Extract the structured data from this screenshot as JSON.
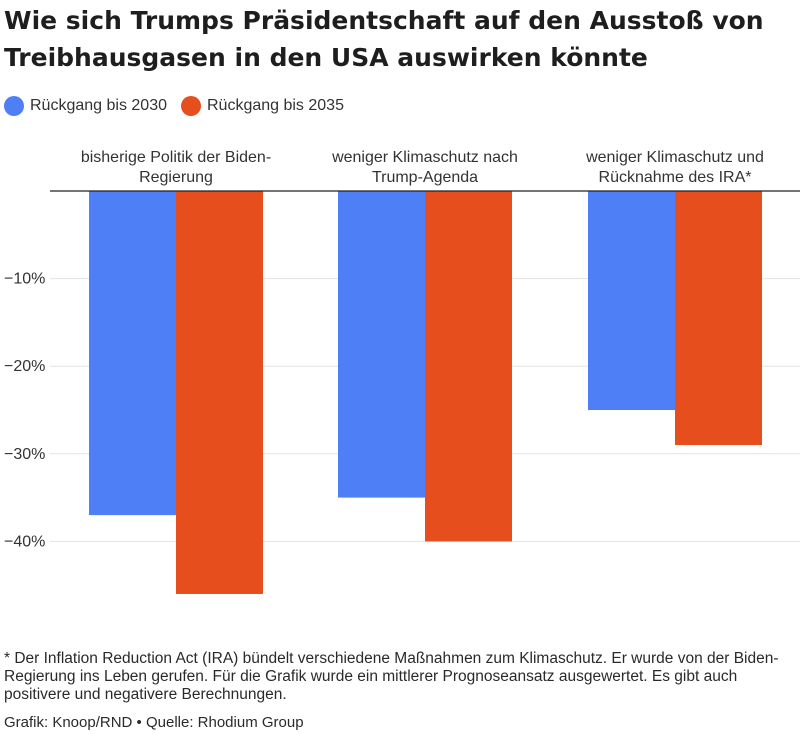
{
  "title": "Wie sich Trumps Präsidentschaft auf den Ausstoß von Treibhausgasen in den USA auswirken könnte",
  "footnote": "* Der Inflation Reduction Act (IRA) bündelt verschiedene Maßnahmen zum Klimaschutz. Er wurde von der Biden-Regierung ins Leben gerufen. Für die Grafik wurde ein mittlerer Prognoseansatz ausgewertet. Es gibt auch positivere und negativere Berechnungen.",
  "credit": "Grafik: Knoop/RND • Quelle: Rhodium Group",
  "chart_data": {
    "type": "bar",
    "categories": [
      [
        "bisherige Politik der Biden-",
        "Regierung"
      ],
      [
        "weniger Klimaschutz nach",
        "Trump-Agenda"
      ],
      [
        "weniger Klimaschutz und",
        "Rücknahme des IRA*"
      ]
    ],
    "series": [
      {
        "name": "Rückgang bis 2030",
        "color": "#4f7ff7",
        "values": [
          -37,
          -35,
          -25
        ]
      },
      {
        "name": "Rückgang bis 2035",
        "color": "#e64e1e",
        "values": [
          -46,
          -40,
          -29
        ]
      }
    ],
    "yticks": [
      {
        "value": -10,
        "label": "−10%"
      },
      {
        "value": -20,
        "label": "−20%"
      },
      {
        "value": -30,
        "label": "−30%"
      },
      {
        "value": -40,
        "label": "−40%"
      }
    ],
    "ylim": [
      -46,
      0
    ],
    "grid": true,
    "legend_position": "top-left"
  }
}
